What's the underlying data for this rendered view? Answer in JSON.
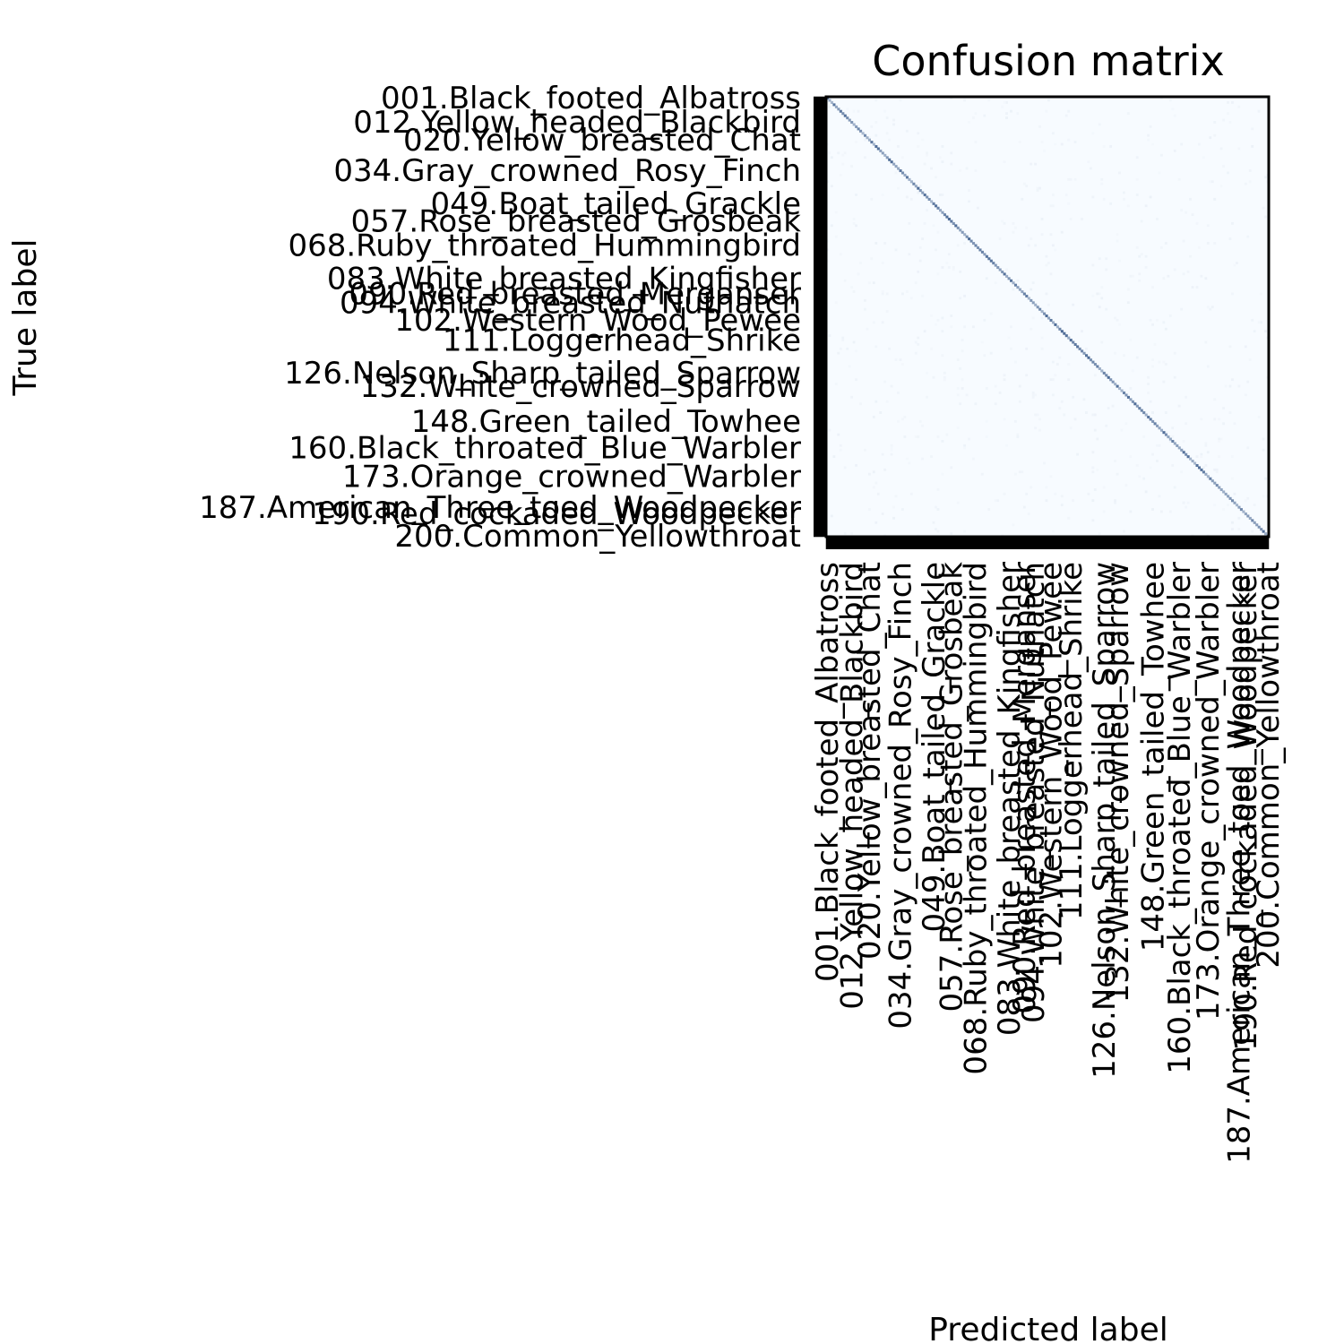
{
  "chart_data": {
    "type": "heatmap",
    "title": "Confusion matrix",
    "xlabel": "Predicted label",
    "ylabel": "True label",
    "colormap": "Blues",
    "colors": {
      "low": "#f7fbff",
      "high": "#08306b",
      "frame": "#000000"
    },
    "n_classes": 200,
    "diagonal_level": 0.55,
    "off_diagonal_level": 0.03,
    "visible_tick_labels": [
      {
        "index": 0,
        "text": "001.Black_footed_Albatross"
      },
      {
        "index": 11,
        "text": "012.Yellow_headed_Blackbird"
      },
      {
        "index": 19,
        "text": "020.Yellow_breasted_Chat"
      },
      {
        "index": 33,
        "text": "034.Gray_crowned_Rosy_Finch"
      },
      {
        "index": 48,
        "text": "049.Boat_tailed_Grackle"
      },
      {
        "index": 56,
        "text": "057.Rose_breasted_Grosbeak"
      },
      {
        "index": 67,
        "text": "068.Ruby_throated_Hummingbird"
      },
      {
        "index": 82,
        "text": "083.White_breasted_Kingfisher"
      },
      {
        "index": 89,
        "text": "090.Red_breasted_Merganser"
      },
      {
        "index": 93,
        "text": "094.White_breasted_Nuthatch"
      },
      {
        "index": 101,
        "text": "102.Western_Wood_Pewee"
      },
      {
        "index": 110,
        "text": "111.Loggerhead_Shrike"
      },
      {
        "index": 125,
        "text": "126.Nelson_Sharp_tailed_Sparrow"
      },
      {
        "index": 131,
        "text": "132.White_crowned_Sparrow"
      },
      {
        "index": 147,
        "text": "148.Green_tailed_Towhee"
      },
      {
        "index": 159,
        "text": "160.Black_throated_Blue_Warbler"
      },
      {
        "index": 172,
        "text": "173.Orange_crowned_Warbler"
      },
      {
        "index": 186,
        "text": "187.American_Three_toed_Woodpecker"
      },
      {
        "index": 189,
        "text": "190.Red_cockaded_Woodpecker"
      },
      {
        "index": 199,
        "text": "200.Common_Yellowthroat"
      }
    ]
  }
}
